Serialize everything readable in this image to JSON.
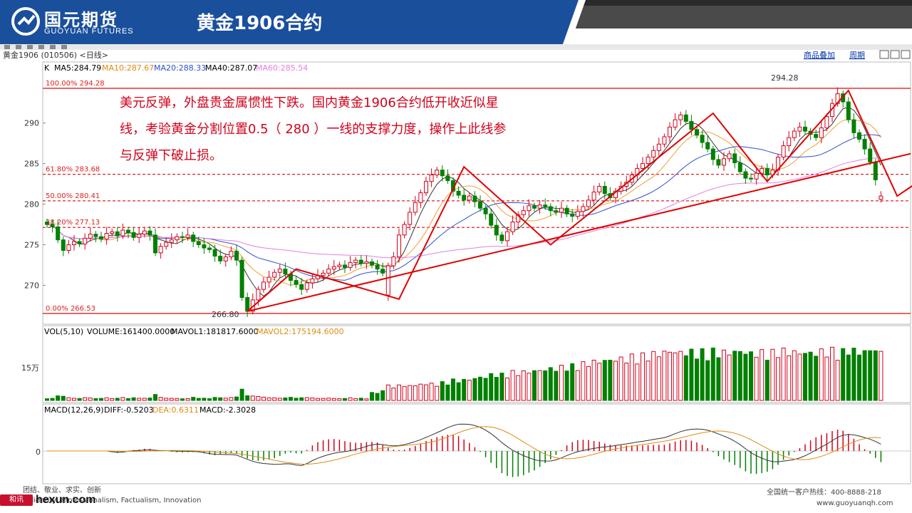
{
  "header": {
    "logo_text": "国元期货",
    "logo_sub": "GUOYUAN FUTURES",
    "slide_title": "黄金1906合约"
  },
  "toolbar": {
    "instrument": "黄金1906 (010506)  <日线>",
    "overlay_btn": "商品叠加",
    "period_btn": "周期"
  },
  "ma_legend": {
    "k": "K",
    "ma5": "MA5:284.79",
    "ma10": "MA10:287.67",
    "ma20": "MA20:288.33",
    "ma40": "MA40:287.07",
    "ma60": "MA60:285.54"
  },
  "fib_labels": {
    "l100": "100.00% 294.28",
    "l618": "61.80% 283.68",
    "l50": "50.00% 280.41",
    "l382": "38.20% 277.13",
    "l0": "0.00% 266.53"
  },
  "extreme_labels": {
    "high": "294.28",
    "low": "266.80"
  },
  "vol_legend": {
    "vol": "VOL(5,10)",
    "volume": "VOLUME:161400.0000",
    "mavol1": "MAVOL1:181817.6000",
    "mavol2": "MAVOL2:175194.6000",
    "axis": "15万"
  },
  "macd_legend": {
    "macd": "MACD(12,26,9)",
    "diff": "DIFF:-0.5203",
    "dea": "DEA:0.6311",
    "val": "MACD:-2.3028",
    "axis": "0"
  },
  "annotation": {
    "line1": "美元反弹，外盘贵金属惯性下跌。国内黄金1906合约低开收近似星",
    "line2": "线，考验黄金分割位置0.5（  280  ）一线的支撑力度，操作上此线参",
    "line3": "与反弹下破止损。"
  },
  "footer": {
    "left1": "团结、敬业、求实、创新",
    "left2": "Solidarity, Professionalism, Factualism, Innovation",
    "right1": "全国统一客户热线：400-8888-218",
    "right2": "www.guoyuanqh.com",
    "wm_badge": "和讯",
    "wm_text": "hexun.com"
  },
  "colors": {
    "header_blue": "#1a4f9c",
    "up": "#d0021b",
    "down": "#008000",
    "ma5": "#333333",
    "ma10": "#f0a030",
    "ma20": "#3050d0",
    "ma60": "#e080e0",
    "fib": "#e02020"
  },
  "chart_data": {
    "type": "candlestick",
    "title": "黄金1906合约",
    "y_ticks": [
      270,
      275,
      280,
      285,
      290
    ],
    "ylim": [
      266.0,
      295.5
    ],
    "fib_levels": [
      {
        "pct": "100.00%",
        "value": 294.28
      },
      {
        "pct": "61.80%",
        "value": 283.68
      },
      {
        "pct": "50.00%",
        "value": 280.41
      },
      {
        "pct": "38.20%",
        "value": 277.13
      },
      {
        "pct": "0.00%",
        "value": 266.53
      }
    ],
    "close": [
      277.5,
      277.2,
      275.6,
      274.3,
      275.0,
      275.4,
      275.1,
      275.8,
      276.3,
      276.0,
      275.7,
      276.4,
      276.6,
      276.1,
      276.8,
      276.5,
      275.9,
      276.3,
      276.7,
      276.2,
      274.0,
      274.8,
      275.3,
      275.6,
      276.0,
      275.9,
      276.2,
      275.4,
      275.0,
      274.6,
      274.4,
      273.6,
      273.0,
      273.5,
      274.2,
      273.1,
      268.5,
      266.8,
      268.2,
      269.5,
      270.4,
      271.0,
      271.6,
      272.0,
      271.4,
      270.6,
      270.1,
      269.5,
      270.3,
      270.8,
      271.2,
      271.5,
      272.0,
      272.3,
      272.5,
      272.2,
      272.8,
      273.1,
      272.7,
      272.9,
      272.5,
      272.0,
      271.5,
      272.4,
      273.5,
      276.2,
      277.5,
      279.0,
      280.2,
      281.4,
      282.8,
      283.6,
      284.2,
      283.5,
      282.9,
      281.6,
      281.1,
      280.5,
      281.0,
      280.3,
      279.5,
      278.8,
      277.4,
      276.2,
      275.5,
      276.6,
      277.8,
      278.7,
      279.2,
      279.8,
      279.5,
      279.9,
      279.7,
      279.2,
      279.0,
      279.5,
      278.8,
      278.5,
      279.1,
      279.7,
      280.5,
      281.5,
      282.2,
      281.3,
      280.8,
      281.6,
      282.2,
      282.7,
      283.6,
      284.4,
      285.0,
      285.8,
      286.6,
      287.4,
      288.3,
      289.5,
      290.4,
      291.0,
      290.2,
      289.2,
      288.5,
      287.6,
      286.8,
      285.5,
      284.8,
      285.6,
      286.2,
      285.1,
      284.0,
      283.2,
      283.1,
      283.8,
      284.4,
      283.6,
      284.2,
      285.8,
      287.2,
      288.2,
      289.0,
      289.5,
      289.0,
      288.6,
      288.2,
      289.4,
      290.8,
      292.4,
      293.6,
      292.6,
      290.4,
      288.8,
      288.0,
      286.8,
      285.2,
      283.0,
      281.0
    ],
    "open": [
      277.8,
      277.5,
      277.2,
      275.6,
      274.3,
      275.0,
      275.4,
      275.1,
      275.8,
      276.3,
      276.0,
      275.7,
      276.4,
      276.6,
      276.1,
      276.8,
      276.5,
      275.9,
      276.3,
      276.7,
      276.2,
      274.0,
      274.8,
      275.3,
      275.6,
      276.0,
      275.9,
      276.2,
      275.4,
      275.0,
      274.6,
      274.4,
      273.6,
      273.0,
      273.5,
      274.2,
      273.1,
      268.5,
      266.8,
      268.2,
      269.5,
      270.4,
      271.0,
      271.6,
      272.0,
      271.4,
      270.6,
      270.1,
      269.5,
      270.3,
      270.8,
      271.2,
      271.5,
      272.0,
      272.3,
      272.5,
      272.2,
      272.8,
      273.1,
      272.7,
      272.9,
      272.5,
      272.0,
      268.8,
      272.4,
      273.5,
      276.2,
      277.5,
      279.0,
      280.2,
      281.4,
      282.8,
      283.6,
      284.2,
      283.5,
      282.9,
      281.6,
      281.1,
      280.5,
      281.0,
      280.3,
      279.5,
      278.8,
      277.4,
      276.2,
      275.5,
      276.6,
      277.8,
      278.7,
      279.2,
      279.8,
      279.5,
      279.9,
      279.7,
      279.2,
      279.0,
      279.5,
      278.8,
      278.5,
      279.1,
      279.7,
      280.5,
      281.5,
      282.2,
      281.3,
      280.8,
      281.6,
      282.2,
      282.7,
      283.6,
      284.4,
      285.0,
      285.8,
      286.6,
      287.4,
      288.3,
      289.5,
      290.4,
      291.0,
      290.2,
      289.2,
      288.5,
      287.6,
      286.8,
      285.5,
      284.8,
      285.6,
      286.2,
      285.1,
      284.0,
      283.2,
      283.1,
      283.8,
      284.4,
      283.6,
      284.2,
      285.8,
      287.2,
      288.2,
      289.0,
      289.5,
      289.0,
      288.6,
      288.2,
      289.4,
      290.8,
      292.4,
      293.6,
      292.6,
      290.4,
      288.8,
      288.0,
      286.8,
      285.2,
      280.6
    ],
    "trend_lines": [
      {
        "name": "uptrend",
        "points": [
          [
            37,
            266.8
          ],
          [
            160,
            286.3
          ]
        ]
      },
      {
        "name": "zigzag",
        "points": [
          [
            37,
            266.8
          ],
          [
            46,
            272.0
          ],
          [
            65,
            268.3
          ],
          [
            77,
            284.6
          ],
          [
            93,
            275.0
          ],
          [
            123,
            291.2
          ],
          [
            133,
            282.8
          ],
          [
            148,
            294.0
          ],
          [
            157,
            281.0
          ],
          [
            163,
            283.7
          ],
          [
            169,
            280.6
          ]
        ]
      }
    ],
    "volume_axis_label": "15万",
    "macd_axis_label": "0"
  }
}
